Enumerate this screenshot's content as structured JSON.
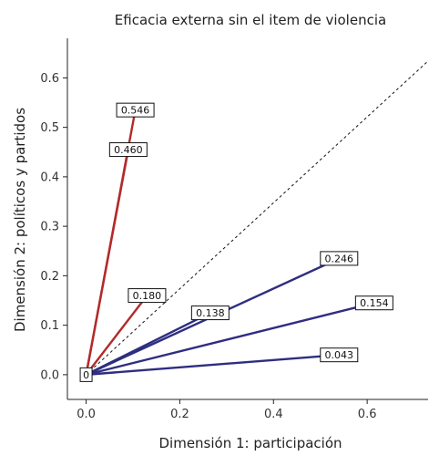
{
  "chart_data": {
    "type": "line",
    "title": "Eficacia externa sin el item de violencia",
    "xlabel": "Dimensión 1: participación",
    "ylabel": "Dimensión 2: políticos y partidos",
    "xlim": [
      -0.04,
      0.73
    ],
    "ylim": [
      -0.05,
      0.68
    ],
    "xticks": [
      "0.0",
      "0.2",
      "0.4",
      "0.6"
    ],
    "yticks": [
      "0.0",
      "0.1",
      "0.2",
      "0.3",
      "0.4",
      "0.5",
      "0.6"
    ],
    "grid": false,
    "reference_line": {
      "style": "dashed",
      "x": [
        0,
        0.73
      ],
      "y": [
        0,
        0.634
      ]
    },
    "origin_label": "0",
    "series": [
      {
        "color": "#b22b2b",
        "x": [
          0,
          0.105
        ],
        "y": [
          0,
          0.535
        ],
        "label": "0.546"
      },
      {
        "color": "#b22b2b",
        "x": [
          0,
          0.09
        ],
        "y": [
          0,
          0.455
        ],
        "label": "0.460"
      },
      {
        "color": "#b22b2b",
        "x": [
          0,
          0.13
        ],
        "y": [
          0,
          0.16
        ],
        "label": "0.180"
      },
      {
        "color": "#2e2e80",
        "x": [
          0,
          0.265
        ],
        "y": [
          0,
          0.125
        ],
        "label": "0.138"
      },
      {
        "color": "#2e2e80",
        "x": [
          0,
          0.54
        ],
        "y": [
          0,
          0.235
        ],
        "label": "0.246"
      },
      {
        "color": "#2e2e80",
        "x": [
          0,
          0.615
        ],
        "y": [
          0,
          0.145
        ],
        "label": "0.154"
      },
      {
        "color": "#2e2e80",
        "x": [
          0,
          0.54
        ],
        "y": [
          0,
          0.04
        ],
        "label": "0.043"
      }
    ]
  }
}
